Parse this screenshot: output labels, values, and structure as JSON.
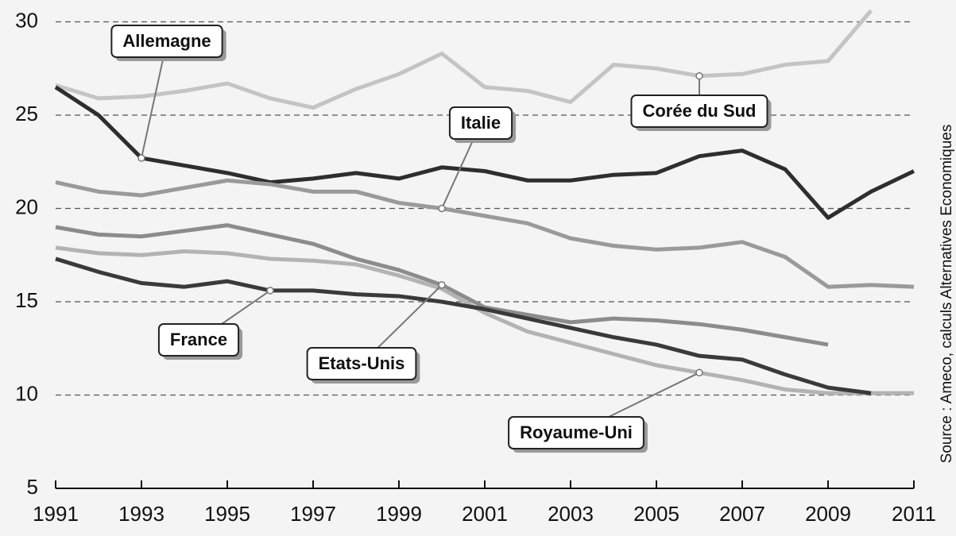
{
  "chart_data": {
    "type": "line",
    "x": [
      1991,
      1992,
      1993,
      1994,
      1995,
      1996,
      1997,
      1998,
      1999,
      2000,
      2001,
      2002,
      2003,
      2004,
      2005,
      2006,
      2007,
      2008,
      2009,
      2010,
      2011
    ],
    "xlim": [
      1991,
      2011
    ],
    "xticks": [
      1991,
      1993,
      1995,
      1997,
      1999,
      2001,
      2003,
      2005,
      2007,
      2009,
      2011
    ],
    "ylim": [
      5,
      31
    ],
    "yticks": [
      5,
      10,
      15,
      20,
      25,
      30
    ],
    "grid": true,
    "source": "Source : Ameco, calculs Alternatives Economiques",
    "series": [
      {
        "name": "Corée du Sud",
        "color": "#c4c4c4",
        "values": [
          26.6,
          25.9,
          26.0,
          26.3,
          26.7,
          25.9,
          25.4,
          26.4,
          27.2,
          28.3,
          26.5,
          26.3,
          25.7,
          27.7,
          27.5,
          27.1,
          27.2,
          27.7,
          27.9,
          30.6,
          null
        ]
      },
      {
        "name": "Allemagne",
        "color": "#2e2e2e",
        "values": [
          26.5,
          25.0,
          22.7,
          22.3,
          21.9,
          21.4,
          21.6,
          21.9,
          21.6,
          22.2,
          22.0,
          21.5,
          21.5,
          21.8,
          21.9,
          22.8,
          23.1,
          22.1,
          19.5,
          20.9,
          22.0
        ]
      },
      {
        "name": "Italie",
        "color": "#9a9a9a",
        "values": [
          21.4,
          20.9,
          20.7,
          21.1,
          21.5,
          21.3,
          20.9,
          20.9,
          20.3,
          20.0,
          19.6,
          19.2,
          18.4,
          18.0,
          17.8,
          17.9,
          18.2,
          17.4,
          15.8,
          15.9,
          15.8
        ]
      },
      {
        "name": "Etats-Unis",
        "color": "#8c8c8c",
        "values": [
          19.0,
          18.6,
          18.5,
          18.8,
          19.1,
          18.6,
          18.1,
          17.3,
          16.7,
          15.9,
          14.7,
          14.3,
          13.9,
          14.1,
          14.0,
          13.8,
          13.5,
          13.1,
          12.7,
          null,
          null
        ]
      },
      {
        "name": "Royaume-Uni",
        "color": "#b3b3b3",
        "values": [
          17.9,
          17.6,
          17.5,
          17.7,
          17.6,
          17.3,
          17.2,
          17.0,
          16.4,
          15.7,
          14.4,
          13.4,
          12.8,
          12.2,
          11.6,
          11.2,
          10.8,
          10.3,
          10.1,
          10.1,
          10.1
        ]
      },
      {
        "name": "France",
        "color": "#3a3a3a",
        "values": [
          17.3,
          16.6,
          16.0,
          15.8,
          16.1,
          15.6,
          15.6,
          15.4,
          15.3,
          15.0,
          14.6,
          14.1,
          13.6,
          13.1,
          12.7,
          12.1,
          11.9,
          11.1,
          10.4,
          10.1,
          null
        ]
      }
    ]
  }
}
